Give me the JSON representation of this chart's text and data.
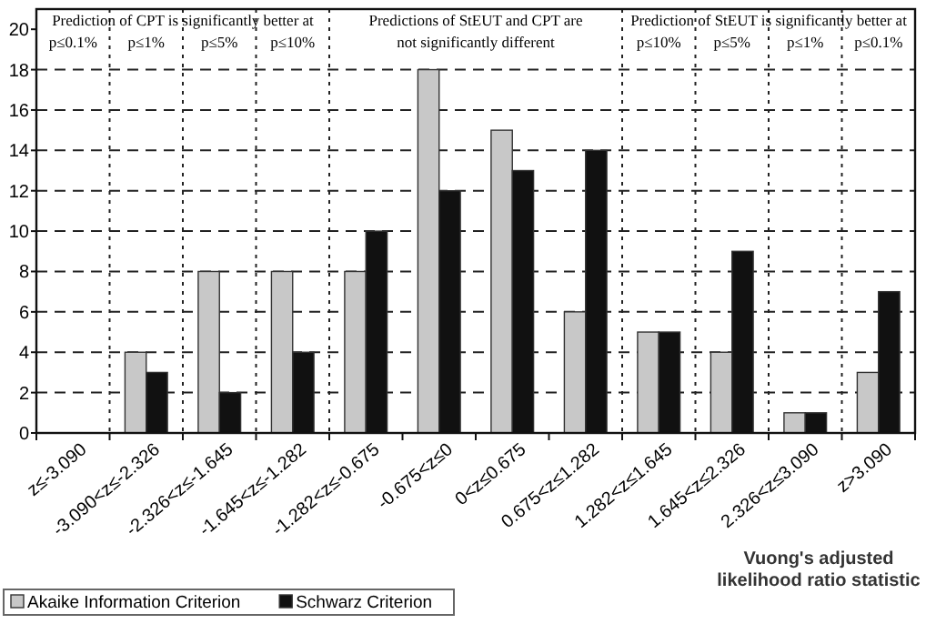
{
  "chart_data": {
    "type": "bar",
    "xlabel": "Vuong's adjusted likelihood ratio statistic",
    "categories": [
      "z≤-3.090",
      "-3.090<z≤-2.326",
      "-2.326<z≤-1.645",
      "-1.645<z≤-1.282",
      "-1.282<z≤-0.675",
      "-0.675<z≤0",
      "0<z≤0.675",
      "0.675<z≤1.282",
      "1.282<z≤1.645",
      "1.645<z≤2.326",
      "2.326<z≤3.090",
      "z>3.090"
    ],
    "series": [
      {
        "name": "Akaike Information Criterion",
        "color": "#c8c8c8",
        "values": [
          0,
          4,
          8,
          8,
          8,
          18,
          15,
          6,
          5,
          4,
          1,
          3
        ]
      },
      {
        "name": "Schwarz Criterion",
        "color": "#111111",
        "values": [
          0,
          3,
          2,
          4,
          10,
          12,
          13,
          14,
          5,
          9,
          1,
          7
        ]
      }
    ],
    "ylim": [
      0,
      21
    ],
    "yticks": [
      0,
      2,
      4,
      6,
      8,
      10,
      12,
      14,
      16,
      18,
      20
    ],
    "grid": "y",
    "legend": "bottom",
    "annotations": [
      "Prediction of CPT is significantly better at",
      "p≤0.1%",
      "p≤1%",
      "p≤5%",
      "p≤10%",
      "Predictions of StEUT and CPT are not significantly different",
      "Prediction of StEUT is significantly better at",
      "p≤10%",
      "p≤5%",
      "p≤1%",
      "p≤0.1%"
    ]
  }
}
